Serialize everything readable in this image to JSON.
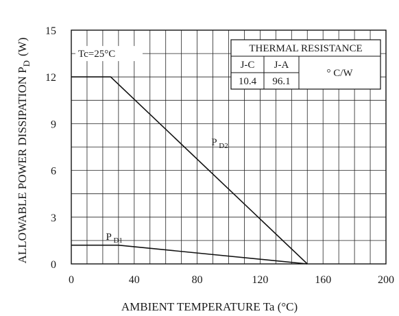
{
  "chart_data": {
    "type": "line",
    "title": "",
    "xlabel": "AMBIENT TEMPERATURE Ta  (°C)",
    "ylabel": "ALLOWABLE POWER DISSIPATION P",
    "ylabel_sub": "D",
    "ylabel_unit": "(W)",
    "xlim": [
      0,
      200
    ],
    "ylim": [
      0,
      15
    ],
    "x_ticks": [
      0,
      40,
      80,
      120,
      160,
      200
    ],
    "y_ticks": [
      0,
      3,
      6,
      9,
      12,
      15
    ],
    "grid": true,
    "condition_label": "Tc=25°C",
    "series": [
      {
        "name": "PD2",
        "label_main": "P",
        "label_sub": "D2",
        "x": [
          0,
          25,
          150
        ],
        "y": [
          12,
          12,
          0
        ]
      },
      {
        "name": "PD1",
        "label_main": "P",
        "label_sub": "D1",
        "x": [
          0,
          30,
          150
        ],
        "y": [
          1.2,
          1.2,
          0
        ]
      }
    ],
    "thermal_table": {
      "title": "THERMAL RESISTANCE",
      "headers": [
        "J-C",
        "J-A"
      ],
      "values": [
        "10.4",
        "96.1"
      ],
      "unit": "° C/W"
    }
  }
}
